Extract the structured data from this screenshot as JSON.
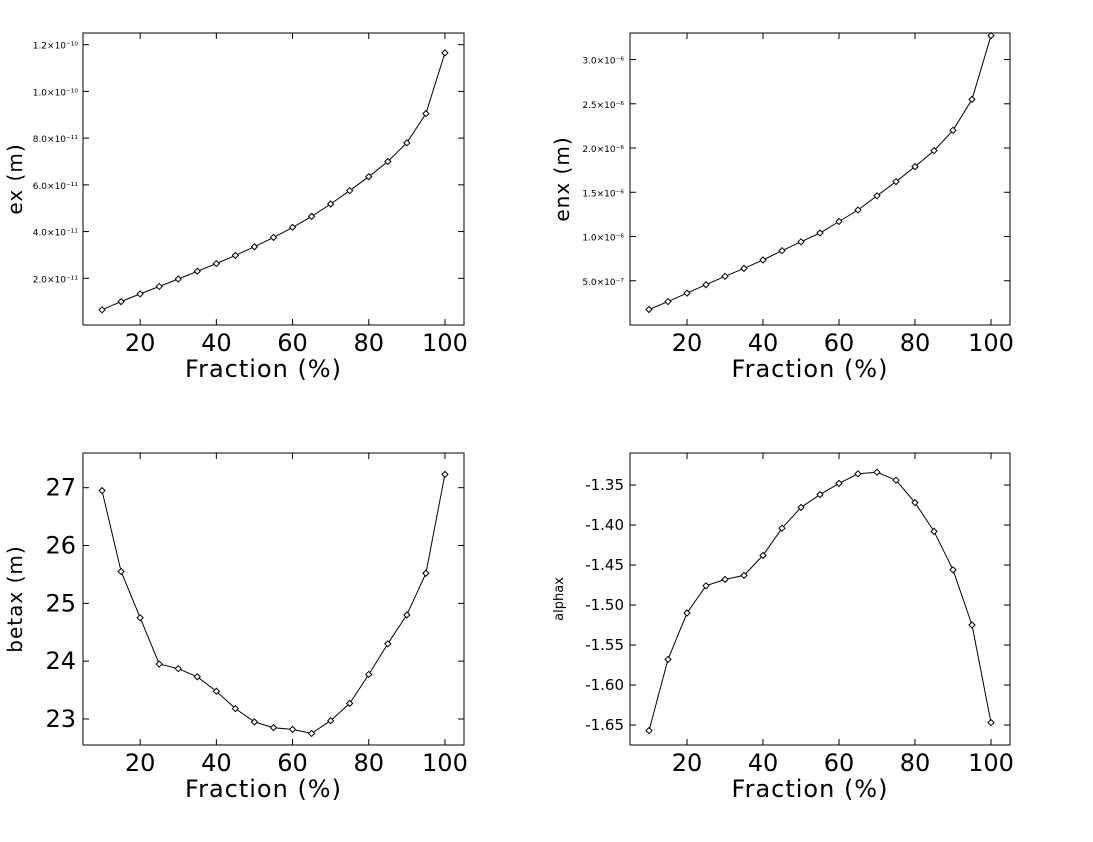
{
  "chart_data": [
    {
      "type": "line",
      "xlabel": "Fraction (%)",
      "ylabel": "ex (m)",
      "xlim": [
        5,
        105
      ],
      "ylim": [
        0.0,
        1.25e-10
      ],
      "xticks": [
        20,
        40,
        60,
        80,
        100
      ],
      "xtick_labels": [
        "20",
        "40",
        "60",
        "80",
        "100"
      ],
      "yticks": [
        2e-11,
        4e-11,
        6e-11,
        8e-11,
        1e-10,
        1.2e-10
      ],
      "ytick_labels": [
        "2.0×10⁻¹¹",
        "4.0×10⁻¹¹",
        "6.0×10⁻¹¹",
        "8.0×10⁻¹¹",
        "1.0×10⁻¹⁰",
        "1.2×10⁻¹⁰"
      ],
      "grid": false,
      "x": [
        10,
        15,
        20,
        25,
        30,
        35,
        40,
        45,
        50,
        55,
        60,
        65,
        70,
        75,
        80,
        85,
        90,
        95,
        100
      ],
      "series": [
        {
          "values": [
            6.5e-12,
            1e-11,
            1.33e-11,
            1.65e-11,
            1.97e-11,
            2.3e-11,
            2.63e-11,
            2.98e-11,
            3.35e-11,
            3.75e-11,
            4.18e-11,
            4.65e-11,
            5.18e-11,
            5.75e-11,
            6.35e-11,
            7e-11,
            7.8e-11,
            9.05e-11,
            1.165e-10
          ]
        }
      ]
    },
    {
      "type": "line",
      "xlabel": "Fraction (%)",
      "ylabel": "enx (m)",
      "xlim": [
        5,
        105
      ],
      "ylim": [
        0.0,
        3.3e-06
      ],
      "xticks": [
        20,
        40,
        60,
        80,
        100
      ],
      "xtick_labels": [
        "20",
        "40",
        "60",
        "80",
        "100"
      ],
      "yticks": [
        5e-07,
        1e-06,
        1.5e-06,
        2e-06,
        2.5e-06,
        3e-06
      ],
      "ytick_labels": [
        "5.0×10⁻⁷",
        "1.0×10⁻⁶",
        "1.5×10⁻⁶",
        "2.0×10⁻⁶",
        "2.5×10⁻⁶",
        "3.0×10⁻⁶"
      ],
      "grid": false,
      "x": [
        10,
        15,
        20,
        25,
        30,
        35,
        40,
        45,
        50,
        55,
        60,
        65,
        70,
        75,
        80,
        85,
        90,
        95,
        100
      ],
      "series": [
        {
          "values": [
            1.75e-07,
            2.65e-07,
            3.6e-07,
            4.55e-07,
            5.5e-07,
            6.4e-07,
            7.35e-07,
            8.4e-07,
            9.4e-07,
            1.04e-06,
            1.17e-06,
            1.3e-06,
            1.46e-06,
            1.62e-06,
            1.79e-06,
            1.97e-06,
            2.2e-06,
            2.55e-06,
            3.27e-06
          ]
        }
      ]
    },
    {
      "type": "line",
      "xlabel": "Fraction (%)",
      "ylabel": "betax (m)",
      "xlim": [
        5,
        105
      ],
      "ylim": [
        22.55,
        27.6
      ],
      "xticks": [
        20,
        40,
        60,
        80,
        100
      ],
      "xtick_labels": [
        "20",
        "40",
        "60",
        "80",
        "100"
      ],
      "yticks": [
        23,
        24,
        25,
        26,
        27
      ],
      "ytick_labels": [
        "23",
        "24",
        "25",
        "26",
        "27"
      ],
      "grid": false,
      "x": [
        10,
        15,
        20,
        25,
        30,
        35,
        40,
        45,
        50,
        55,
        60,
        65,
        70,
        75,
        80,
        85,
        90,
        95,
        100
      ],
      "series": [
        {
          "values": [
            26.95,
            25.55,
            24.75,
            23.95,
            23.87,
            23.73,
            23.48,
            23.18,
            22.95,
            22.85,
            22.82,
            22.75,
            22.97,
            23.27,
            23.77,
            24.3,
            24.8,
            25.52,
            27.23
          ]
        }
      ]
    },
    {
      "type": "line",
      "xlabel": "Fraction (%)",
      "ylabel": "alphax",
      "xlim": [
        5,
        105
      ],
      "ylim": [
        -1.675,
        -1.31
      ],
      "xticks": [
        20,
        40,
        60,
        80,
        100
      ],
      "xtick_labels": [
        "20",
        "40",
        "60",
        "80",
        "100"
      ],
      "yticks": [
        -1.65,
        -1.6,
        -1.55,
        -1.5,
        -1.45,
        -1.4,
        -1.35
      ],
      "ytick_labels": [
        "-1.65",
        "-1.60",
        "-1.55",
        "-1.50",
        "-1.45",
        "-1.40",
        "-1.35"
      ],
      "grid": false,
      "x": [
        10,
        15,
        20,
        25,
        30,
        35,
        40,
        45,
        50,
        55,
        60,
        65,
        70,
        75,
        80,
        85,
        90,
        95,
        100
      ],
      "series": [
        {
          "values": [
            -1.657,
            -1.568,
            -1.51,
            -1.476,
            -1.468,
            -1.463,
            -1.438,
            -1.404,
            -1.378,
            -1.362,
            -1.348,
            -1.336,
            -1.334,
            -1.344,
            -1.372,
            -1.408,
            -1.456,
            -1.525,
            -1.647
          ]
        }
      ]
    }
  ]
}
